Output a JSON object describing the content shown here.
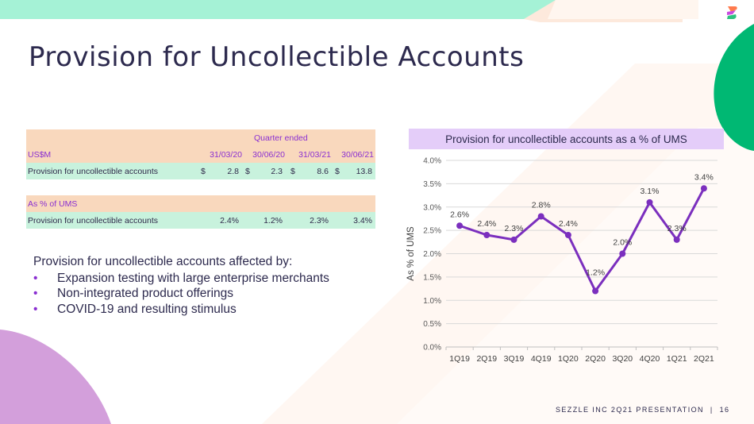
{
  "title": "Provision for Uncollectible Accounts",
  "table": {
    "quarter_ended": "Quarter ended",
    "unit_label": "US$M",
    "columns": [
      "31/03/20",
      "30/06/20",
      "31/03/21",
      "30/06/21"
    ],
    "row1": {
      "label": "Provision for uncollectible accounts",
      "currency": "$",
      "values": [
        "2.8",
        "2.3",
        "8.6",
        "13.8"
      ]
    },
    "pct_header": "As % of UMS",
    "row2": {
      "label": "Provision for uncollectible accounts",
      "values": [
        "2.4%",
        "1.2%",
        "2.3%",
        "3.4%"
      ]
    }
  },
  "bullets": {
    "heading": "Provision for uncollectible accounts affected by:",
    "marker": "•",
    "items": [
      "Expansion testing with large enterprise merchants",
      "Non-integrated product offerings",
      "COVID-19 and resulting stimulus"
    ]
  },
  "chart_header": "Provision for uncollectible accounts as a % of UMS",
  "chart_data": {
    "type": "line",
    "categories": [
      "1Q19",
      "2Q19",
      "3Q19",
      "4Q19",
      "1Q20",
      "2Q20",
      "3Q20",
      "4Q20",
      "1Q21",
      "2Q21"
    ],
    "values": [
      2.6,
      2.4,
      2.3,
      2.8,
      2.4,
      1.2,
      2.0,
      3.1,
      2.3,
      3.4
    ],
    "data_labels": [
      "2.6%",
      "2.4%",
      "2.3%",
      "2.8%",
      "2.4%",
      "1.2%",
      "2.0%",
      "3.1%",
      "2.3%",
      "3.4%"
    ],
    "ylabel": "As % of UMS",
    "ylim": [
      0,
      4
    ],
    "yticks": [
      0,
      0.5,
      1,
      1.5,
      2,
      2.5,
      3,
      3.5,
      4
    ],
    "ytick_labels": [
      "0.0%",
      "0.5%",
      "1.0%",
      "1.5%",
      "2.0%",
      "2.5%",
      "3.0%",
      "3.5%",
      "4.0%"
    ],
    "grid": true,
    "line_color": "#7b2fbe"
  },
  "footer": {
    "text": "SEZZLE INC 2Q21 PRESENTATION",
    "separator": "|",
    "page": "16"
  }
}
